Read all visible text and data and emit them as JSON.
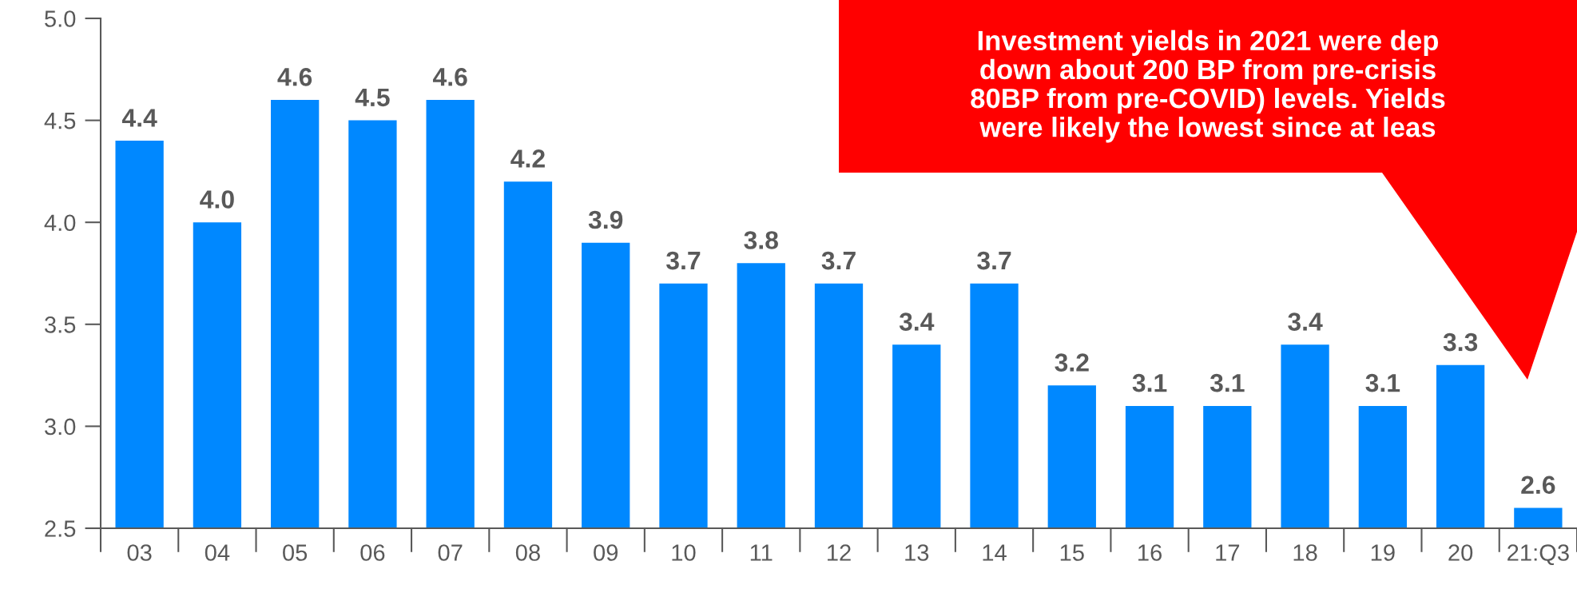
{
  "chart_data": {
    "type": "bar",
    "categories": [
      "03",
      "04",
      "05",
      "06",
      "07",
      "08",
      "09",
      "10",
      "11",
      "12",
      "13",
      "14",
      "15",
      "16",
      "17",
      "18",
      "19",
      "20",
      "21:Q3"
    ],
    "values": [
      4.4,
      4.0,
      4.6,
      4.5,
      4.6,
      4.2,
      3.9,
      3.7,
      3.8,
      3.7,
      3.4,
      3.7,
      3.2,
      3.1,
      3.1,
      3.4,
      3.1,
      3.3,
      2.6
    ],
    "color": "#0088ff",
    "ylim": [
      2.5,
      5.0
    ],
    "yticks": [
      {
        "value": 2.5,
        "label": "2.5"
      },
      {
        "value": 3.0,
        "label": "3.0"
      },
      {
        "value": 3.5,
        "label": "3.5"
      },
      {
        "value": 4.0,
        "label": "4.0"
      },
      {
        "value": 4.5,
        "label": "4.5"
      },
      {
        "value": 5.0,
        "label": "5.0"
      }
    ],
    "value_labels": [
      "4.4",
      "4.0",
      "4.6",
      "4.5",
      "4.6",
      "4.2",
      "3.9",
      "3.7",
      "3.8",
      "3.7",
      "3.4",
      "3.7",
      "3.2",
      "3.1",
      "3.1",
      "3.4",
      "3.1",
      "3.3",
      "2.6"
    ],
    "grid": false,
    "annotations": [
      "Investment yields in 2021 were dep\ndown about 200 BP from pre-crisis\n80BP from pre-COVID) levels. Yields\nwere likely the lowest since at leas"
    ]
  }
}
